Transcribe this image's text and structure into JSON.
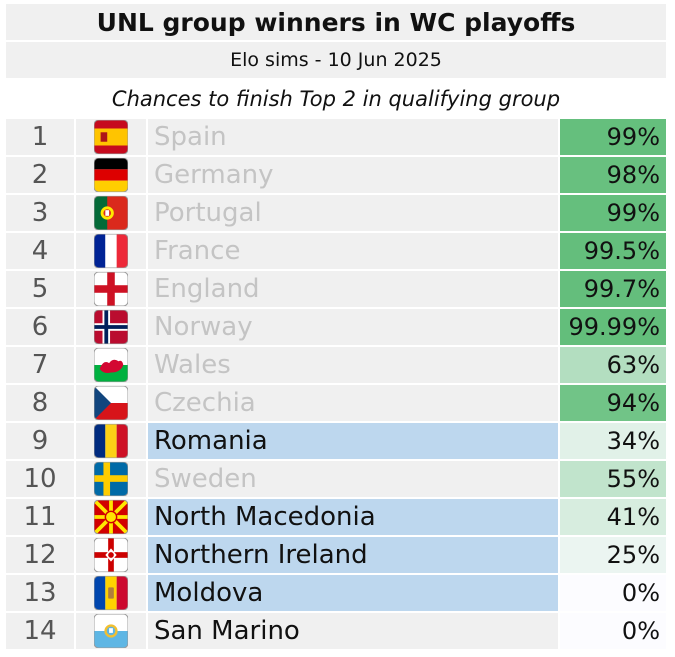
{
  "chart_data": {
    "type": "table",
    "title": "UNL group winners in WC playoffs",
    "subtitle": "Elo sims - 10 Jun 2025",
    "tagline": "Chances to finish Top 2 in qualifying group",
    "rows": [
      {
        "rank": "1",
        "country": "Spain",
        "flag": "spain-flag-icon",
        "chance": "99%",
        "value": 99,
        "highlighted": false,
        "dim": true
      },
      {
        "rank": "2",
        "country": "Germany",
        "flag": "germany-flag-icon",
        "chance": "98%",
        "value": 98,
        "highlighted": false,
        "dim": true
      },
      {
        "rank": "3",
        "country": "Portugal",
        "flag": "portugal-flag-icon",
        "chance": "99%",
        "value": 99,
        "highlighted": false,
        "dim": true
      },
      {
        "rank": "4",
        "country": "France",
        "flag": "france-flag-icon",
        "chance": "99.5%",
        "value": 99.5,
        "highlighted": false,
        "dim": true
      },
      {
        "rank": "5",
        "country": "England",
        "flag": "england-flag-icon",
        "chance": "99.7%",
        "value": 99.7,
        "highlighted": false,
        "dim": true
      },
      {
        "rank": "6",
        "country": "Norway",
        "flag": "norway-flag-icon",
        "chance": "99.99%",
        "value": 99.99,
        "highlighted": false,
        "dim": true
      },
      {
        "rank": "7",
        "country": "Wales",
        "flag": "wales-flag-icon",
        "chance": "63%",
        "value": 63,
        "highlighted": false,
        "dim": true
      },
      {
        "rank": "8",
        "country": "Czechia",
        "flag": "czechia-flag-icon",
        "chance": "94%",
        "value": 94,
        "highlighted": false,
        "dim": true
      },
      {
        "rank": "9",
        "country": "Romania",
        "flag": "romania-flag-icon",
        "chance": "34%",
        "value": 34,
        "highlighted": true,
        "dim": false
      },
      {
        "rank": "10",
        "country": "Sweden",
        "flag": "sweden-flag-icon",
        "chance": "55%",
        "value": 55,
        "highlighted": false,
        "dim": true
      },
      {
        "rank": "11",
        "country": "North Macedonia",
        "flag": "north-macedonia-flag-icon",
        "chance": "41%",
        "value": 41,
        "highlighted": true,
        "dim": false
      },
      {
        "rank": "12",
        "country": "Northern Ireland",
        "flag": "northern-ireland-flag-icon",
        "chance": "25%",
        "value": 25,
        "highlighted": true,
        "dim": false
      },
      {
        "rank": "13",
        "country": "Moldova",
        "flag": "moldova-flag-icon",
        "chance": "0%",
        "value": 0,
        "highlighted": true,
        "dim": false
      },
      {
        "rank": "14",
        "country": "San Marino",
        "flag": "san-marino-flag-icon",
        "chance": "0%",
        "value": 0,
        "highlighted": false,
        "dim": false
      }
    ]
  },
  "colors": {
    "cell_bg": "#f0f0f0",
    "highlight_bg": "#bdd7ee",
    "dim_text": "#c4c4c4",
    "scale_high": "#63be7b",
    "scale_low": "#fcfcff"
  }
}
